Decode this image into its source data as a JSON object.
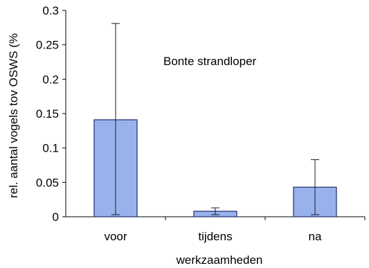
{
  "chart_data": {
    "type": "bar",
    "annotation": "Bonte strandloper",
    "xlabel": "werkzaamheden",
    "ylabel": "rel. aantal vogels tov OSWS (%",
    "categories": [
      "voor",
      "tijdens",
      "na"
    ],
    "values": [
      0.141,
      0.008,
      0.043
    ],
    "error_low": [
      0.003,
      0.003,
      0.003
    ],
    "error_high": [
      0.281,
      0.013,
      0.083
    ],
    "ylim": [
      0,
      0.3
    ],
    "yticks": [
      0,
      0.05,
      0.1,
      0.15,
      0.2,
      0.25,
      0.3
    ],
    "ytick_labels": [
      "0",
      "0.05",
      "0.1",
      "0.15",
      "0.2",
      "0.25",
      "0.3"
    ],
    "grid": false,
    "legend": "none",
    "bar_color": "#98b2ec",
    "bar_edge_color": "#1f2a6b"
  }
}
